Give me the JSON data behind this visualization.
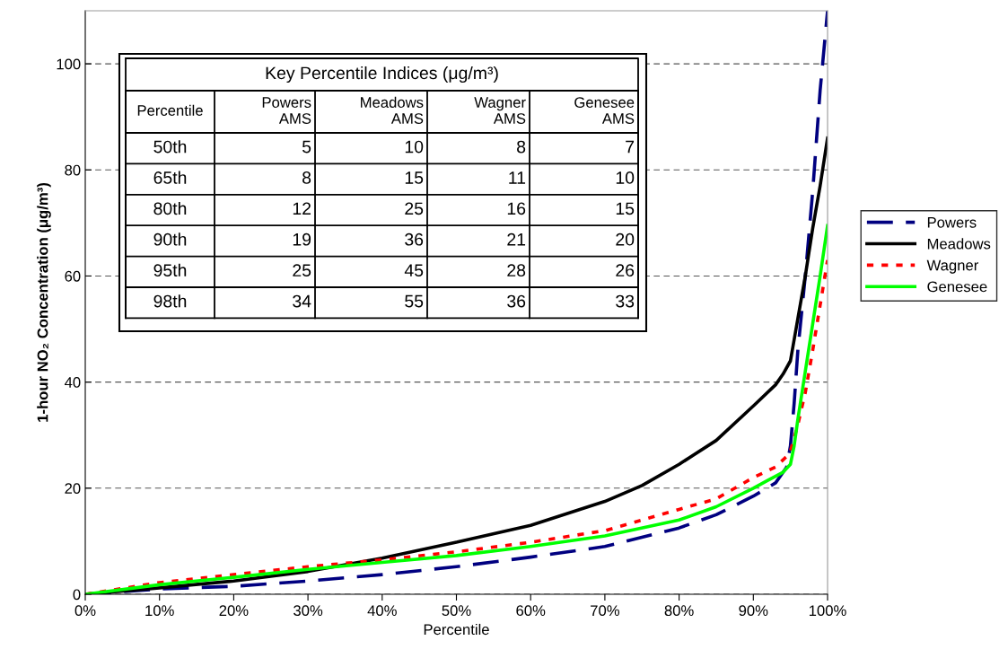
{
  "chart_data": {
    "type": "line",
    "xlabel": "Percentile",
    "ylabel": "1-hour NO₂ Concentration (μg/m³)",
    "xlim": [
      0,
      100
    ],
    "xticks": [
      {
        "value": 0,
        "label": "0%"
      },
      {
        "value": 10,
        "label": "10%"
      },
      {
        "value": 20,
        "label": "20%"
      },
      {
        "value": 30,
        "label": "30%"
      },
      {
        "value": 40,
        "label": "40%"
      },
      {
        "value": 50,
        "label": "50%"
      },
      {
        "value": 60,
        "label": "60%"
      },
      {
        "value": 70,
        "label": "70%"
      },
      {
        "value": 80,
        "label": "80%"
      },
      {
        "value": 90,
        "label": "90%"
      },
      {
        "value": 100,
        "label": "100%"
      }
    ],
    "ylim": [
      0,
      110
    ],
    "yticks": [
      0,
      20,
      40,
      60,
      80,
      100
    ],
    "grid": "y",
    "legend": "right",
    "series": [
      {
        "name": "Powers",
        "color": "#000080",
        "line_style": "dashed",
        "x": [
          0,
          10,
          20,
          30,
          40,
          50,
          60,
          70,
          80,
          85,
          90,
          93,
          94.5,
          95,
          95.5,
          96,
          96.5,
          97,
          98,
          99,
          100
        ],
        "values": [
          0,
          1,
          1.5,
          2.5,
          3.7,
          5.2,
          7,
          9,
          12.5,
          15,
          18.5,
          21,
          24,
          28,
          36,
          46,
          53,
          60,
          76,
          95,
          110
        ]
      },
      {
        "name": "Meadows",
        "color": "#000000",
        "line_style": "solid",
        "x": [
          0,
          10,
          20,
          30,
          40,
          50,
          60,
          70,
          75,
          80,
          85,
          90,
          93,
          94,
          95,
          96,
          97,
          98,
          99,
          100
        ],
        "values": [
          0,
          1.2,
          2.5,
          4.3,
          6.8,
          9.8,
          13,
          17.5,
          20.5,
          24.5,
          29,
          35.5,
          39.5,
          41.5,
          44,
          52,
          60,
          69,
          77,
          86
        ]
      },
      {
        "name": "Wagner",
        "color": "#ff0000",
        "line_style": "dotted",
        "x": [
          0,
          10,
          20,
          30,
          40,
          50,
          60,
          70,
          80,
          85,
          90,
          93,
          94.5,
          95,
          96,
          97,
          98,
          99,
          100
        ],
        "values": [
          0,
          2.2,
          3.7,
          5.2,
          6.5,
          8,
          9.8,
          12,
          16,
          18,
          22,
          24,
          26,
          27,
          32,
          38,
          46,
          54.5,
          63
        ]
      },
      {
        "name": "Genesee",
        "color": "#00ff00",
        "line_style": "solid",
        "x": [
          0,
          10,
          20,
          30,
          40,
          50,
          60,
          70,
          80,
          85,
          90,
          92,
          94,
          95,
          95.5,
          96,
          97,
          98,
          99,
          100
        ],
        "values": [
          0,
          1.8,
          3.2,
          4.7,
          6,
          7.3,
          9,
          11,
          14,
          16.5,
          20,
          21.5,
          23,
          24.5,
          28,
          33,
          42,
          51,
          60,
          69.5
        ]
      }
    ],
    "annotations": [
      "Key Percentile Indices (μg/m³)",
      "Percentile",
      "Powers\nAMS",
      "Meadows\nAMS",
      "Wagner\nAMS",
      "Genesee\nAMS",
      "50th",
      "5",
      "10",
      "8",
      "7",
      "65th",
      "8",
      "15",
      "11",
      "10",
      "80th",
      "12",
      "25",
      "16",
      "15",
      "90th",
      "19",
      "36",
      "21",
      "20",
      "95th",
      "25",
      "45",
      "28",
      "26",
      "98th",
      "34",
      "55",
      "36",
      "33"
    ]
  }
}
